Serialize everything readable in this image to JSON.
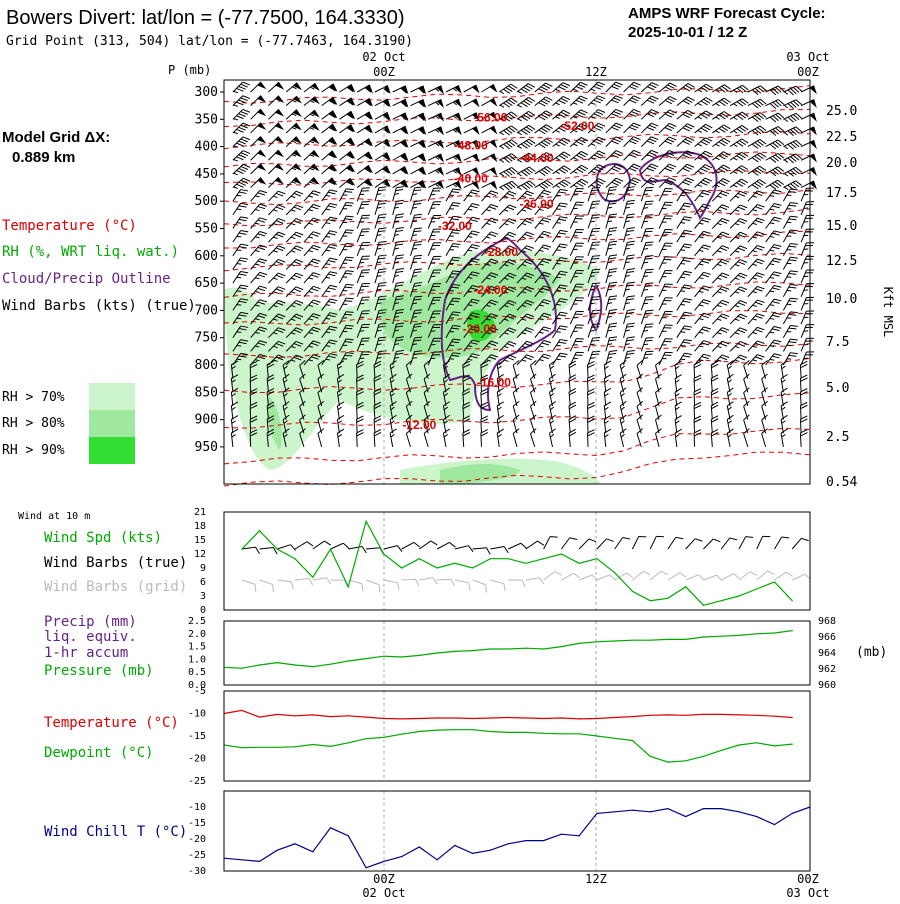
{
  "header": {
    "title": "Bowers Divert:  lat/lon = (-77.7500, 164.3330)",
    "subtitle": "Grid Point (313, 504) lat/lon = (-77.7463, 164.3190)",
    "cycle_label": "AMPS WRF Forecast Cycle:",
    "cycle_value": "2025-10-01 / 12  Z"
  },
  "colors": {
    "temperature": "#dd0000",
    "rh": "#00aa00",
    "cloud": "#662288",
    "wind_chill": "#000088",
    "rh70": "#ccf5cc",
    "rh80": "#a0e8a0",
    "rh90": "#33dd33"
  },
  "legend": {
    "model_grid": "Model Grid ΔX:",
    "model_grid_value": "0.889 km",
    "temperature": "Temperature (°C)",
    "rh": "RH (%, WRT liq. wat.)",
    "cloud": "Cloud/Precip Outline",
    "wind": "Wind Barbs (kts) (true)",
    "rh70": "RH > 70%",
    "rh80": "RH > 80%",
    "rh90": "RH > 90%"
  },
  "time_axis": {
    "top_dates": [
      "02 Oct",
      "",
      "03 Oct"
    ],
    "top_hours": [
      "00Z",
      "12Z",
      "00Z"
    ],
    "bottom_hours": [
      "00Z",
      "12Z",
      "00Z"
    ],
    "bottom_dates": [
      "02 Oct",
      "",
      "03 Oct"
    ],
    "start_hour": 0,
    "end_hour": 33,
    "tick_hours": [
      9,
      21,
      33
    ]
  },
  "chart_data": [
    {
      "type": "heatmap",
      "panel": "sounding",
      "ylabel": "P (mb)",
      "y2label": "Kft MSL",
      "pressure_ticks": [
        300,
        350,
        400,
        450,
        500,
        550,
        600,
        650,
        700,
        750,
        800,
        850,
        900,
        950
      ],
      "height_ticks": [
        "25.0",
        "22.5",
        "20.0",
        "17.5",
        "15.0",
        "12.5",
        "10.0",
        "7.5",
        "5.0",
        "2.5",
        "0.54"
      ],
      "temperature_labels": [
        {
          "text": "-56.00",
          "hour": 15.0,
          "p": 347
        },
        {
          "text": "-52.00",
          "hour": 19.9,
          "p": 362
        },
        {
          "text": "-48.00",
          "hour": 13.9,
          "p": 398
        },
        {
          "text": "-44.00",
          "hour": 17.6,
          "p": 421
        },
        {
          "text": "-40.00",
          "hour": 13.9,
          "p": 458
        },
        {
          "text": "-36.00",
          "hour": 17.6,
          "p": 505
        },
        {
          "text": "-32.00",
          "hour": 13.0,
          "p": 545
        },
        {
          "text": "-28.00",
          "hour": 15.6,
          "p": 593
        },
        {
          "text": "-24.00",
          "hour": 15.0,
          "p": 663
        },
        {
          "text": "-20.00",
          "hour": 14.4,
          "p": 734
        },
        {
          "text": "-16.00",
          "hour": 15.2,
          "p": 832
        },
        {
          "text": "-12.00",
          "hour": 11.0,
          "p": 910
        }
      ]
    },
    {
      "type": "line",
      "panel": "wind",
      "title": "Wind at 10 m",
      "series": [
        {
          "name": "Wind Spd (kts)",
          "values": [
            13,
            17,
            13,
            11,
            7,
            13,
            5,
            19,
            12,
            9,
            11,
            9,
            10,
            9,
            11,
            11,
            10,
            11,
            12,
            10,
            11,
            8,
            4,
            2,
            2.5,
            5,
            1,
            2,
            3,
            4.5,
            6,
            2
          ]
        }
      ],
      "x_hours": [
        1,
        2,
        3,
        4,
        5,
        6,
        7,
        8,
        9,
        10,
        11,
        12,
        13,
        14,
        15,
        16,
        17,
        18,
        19,
        20,
        21,
        22,
        23,
        24,
        25,
        26,
        27,
        28,
        29,
        30,
        31,
        32
      ],
      "labels": {
        "speed": "Wind Spd (kts)",
        "barbs_true": "Wind Barbs (true)",
        "barbs_grid": "Wind Barbs (grid)"
      },
      "y_ticks": [
        0,
        3,
        6,
        9,
        12,
        15,
        18,
        21
      ],
      "ylim": [
        0,
        21
      ]
    },
    {
      "type": "line",
      "panel": "precip",
      "series": [
        {
          "name": "Pressure (mb)",
          "values": [
            962.2,
            962.1,
            962.5,
            962.8,
            962.5,
            962.3,
            962.6,
            963.0,
            963.3,
            963.6,
            963.5,
            963.7,
            964.0,
            964.2,
            964.3,
            964.5,
            964.5,
            964.6,
            964.5,
            964.8,
            965.2,
            965.4,
            965.5,
            965.6,
            965.6,
            965.7,
            965.7,
            966.0,
            966.1,
            966.2,
            966.4,
            966.5,
            966.8
          ]
        }
      ],
      "x_hours": [
        0,
        1,
        2,
        3,
        4,
        5,
        6,
        7,
        8,
        9,
        10,
        11,
        12,
        13,
        14,
        15,
        16,
        17,
        18,
        19,
        20,
        21,
        22,
        23,
        24,
        25,
        26,
        27,
        28,
        29,
        30,
        31,
        32
      ],
      "labels": {
        "precip1": "Precip (mm)",
        "precip2": "liq. equiv.",
        "precip3": "1-hr accum",
        "pressure": "Pressure (mb)",
        "y2unit": "(mb)"
      },
      "y_ticks": [
        "0.0",
        "0.5",
        "1.0",
        "1.5",
        "2.0",
        "2.5"
      ],
      "y2_ticks": [
        960,
        962,
        964,
        966,
        968
      ],
      "ylim": [
        0,
        2.5
      ],
      "y2lim": [
        960,
        968
      ]
    },
    {
      "type": "line",
      "panel": "temperature",
      "series": [
        {
          "name": "Temperature (°C)",
          "values": [
            -10,
            -9.3,
            -10.8,
            -10.2,
            -10.5,
            -10.3,
            -10.7,
            -10.5,
            -10.8,
            -11.1,
            -11.2,
            -11.1,
            -11.0,
            -11.0,
            -11.1,
            -11.0,
            -10.9,
            -11.0,
            -11.1,
            -11.0,
            -11.2,
            -11.1,
            -10.9,
            -10.7,
            -10.4,
            -10.3,
            -10.4,
            -10.2,
            -10.2,
            -10.3,
            -10.4,
            -10.6,
            -10.9
          ]
        },
        {
          "name": "Dewpoint (°C)",
          "values": [
            -17,
            -17.6,
            -17.5,
            -17.5,
            -17.4,
            -16.9,
            -17.3,
            -16.5,
            -15.6,
            -15.3,
            -14.6,
            -14.0,
            -13.7,
            -13.6,
            -13.6,
            -14.0,
            -14.2,
            -14.2,
            -14.4,
            -14.5,
            -14.5,
            -15.0,
            -15.5,
            -16.0,
            -19.5,
            -20.8,
            -20.5,
            -19.5,
            -18.2,
            -17.0,
            -16.5,
            -17.2,
            -16.8
          ]
        }
      ],
      "x_hours": [
        0,
        1,
        2,
        3,
        4,
        5,
        6,
        7,
        8,
        9,
        10,
        11,
        12,
        13,
        14,
        15,
        16,
        17,
        18,
        19,
        20,
        21,
        22,
        23,
        24,
        25,
        26,
        27,
        28,
        29,
        30,
        31,
        32
      ],
      "labels": {
        "temperature": "Temperature (°C)",
        "dewpoint": "Dewpoint (°C)"
      },
      "y_ticks": [
        -5,
        -10,
        -15,
        -20,
        -25
      ],
      "ylim": [
        -25,
        -5
      ]
    },
    {
      "type": "line",
      "panel": "windchill",
      "series": [
        {
          "name": "Wind Chill T (°C)",
          "values": [
            -26,
            -26.5,
            -27,
            -23.5,
            -21.5,
            -24,
            -16.5,
            -19,
            -29,
            -27,
            -25.5,
            -22.5,
            -26.5,
            -22,
            -24.5,
            -23.5,
            -21.5,
            -20.5,
            -20.5,
            -18.5,
            -19,
            -12,
            -11.5,
            -11,
            -11.5,
            -10.5,
            -13,
            -10.5,
            -10.5,
            -11.5,
            -13,
            -15.5,
            -12,
            -10
          ]
        }
      ],
      "x_hours": [
        0,
        1,
        2,
        3,
        4,
        5,
        6,
        7,
        8,
        9,
        10,
        11,
        12,
        13,
        14,
        15,
        16,
        17,
        18,
        19,
        20,
        21,
        22,
        23,
        24,
        25,
        26,
        27,
        28,
        29,
        30,
        31,
        32,
        33
      ],
      "labels": {
        "windchill": "Wind Chill T (°C)"
      },
      "y_ticks": [
        -10,
        -15,
        -20,
        -25,
        -30
      ],
      "ylim": [
        -30,
        -5
      ]
    }
  ]
}
